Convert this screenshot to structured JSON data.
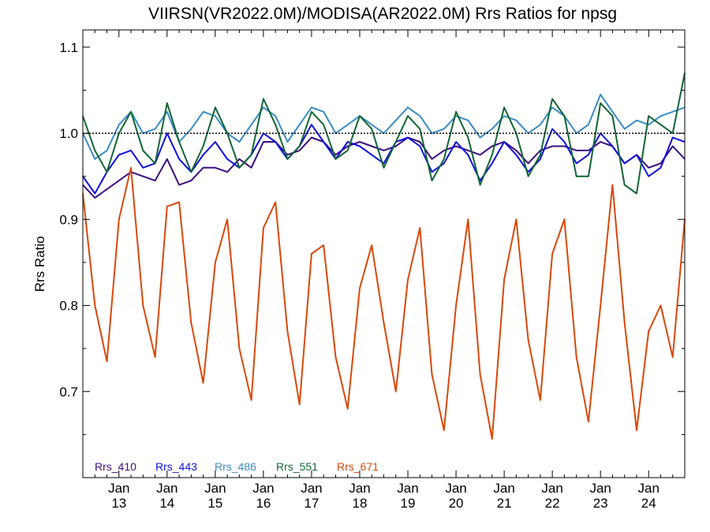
{
  "chart_data": {
    "type": "line",
    "title": "VIIRSN(VR2022.0M)/MODISA(AR2022.0M)  Rrs Ratios for npsg",
    "xlabel": "",
    "ylabel": "Rrs Ratio",
    "x_axis": {
      "unit": "year (20xx)",
      "range": [
        2012.25,
        2024.75
      ],
      "tick_years": [
        2013,
        2014,
        2015,
        2016,
        2017,
        2018,
        2019,
        2020,
        2021,
        2022,
        2023,
        2024
      ],
      "tick_month_labels": [
        "Jan",
        "Jan",
        "Jan",
        "Jan",
        "Jan",
        "Jan",
        "Jan",
        "Jan",
        "Jan",
        "Jan",
        "Jan",
        "Jan"
      ],
      "tick_year_labels": [
        "13",
        "14",
        "15",
        "16",
        "17",
        "18",
        "19",
        "20",
        "21",
        "22",
        "23",
        "24"
      ]
    },
    "y_axis": {
      "range": [
        0.6,
        1.12
      ],
      "ticks": [
        0.7,
        0.8,
        0.9,
        1.0,
        1.1
      ],
      "tick_labels": [
        "0.7",
        "0.8",
        "0.9",
        "1.0",
        "1.1"
      ],
      "minor_ticks": [
        0.65,
        0.75,
        0.85,
        0.95,
        1.05
      ]
    },
    "grid": false,
    "reference_line": {
      "y": 1.0,
      "style": "dotted"
    },
    "legend_placement": "bottom-left",
    "series": [
      {
        "name": "Rrs_410",
        "color": "#3c0d80",
        "x": [
          2012.25,
          2012.5,
          2012.75,
          2013.0,
          2013.25,
          2013.5,
          2013.75,
          2014.0,
          2014.25,
          2014.5,
          2014.75,
          2015.0,
          2015.25,
          2015.5,
          2015.75,
          2016.0,
          2016.25,
          2016.5,
          2016.75,
          2017.0,
          2017.25,
          2017.5,
          2017.75,
          2018.0,
          2018.25,
          2018.5,
          2018.75,
          2019.0,
          2019.25,
          2019.5,
          2019.75,
          2020.0,
          2020.25,
          2020.5,
          2020.75,
          2021.0,
          2021.25,
          2021.5,
          2021.75,
          2022.0,
          2022.25,
          2022.5,
          2022.75,
          2023.0,
          2023.25,
          2023.5,
          2023.75,
          2024.0,
          2024.25,
          2024.5,
          2024.75
        ],
        "values": [
          0.94,
          0.925,
          0.935,
          0.945,
          0.955,
          0.95,
          0.945,
          0.97,
          0.94,
          0.945,
          0.96,
          0.96,
          0.955,
          0.97,
          0.96,
          0.99,
          0.99,
          0.975,
          0.98,
          0.995,
          0.99,
          0.975,
          0.985,
          0.99,
          0.985,
          0.98,
          0.985,
          0.995,
          0.99,
          0.97,
          0.98,
          0.985,
          0.98,
          0.975,
          0.985,
          0.99,
          0.98,
          0.965,
          0.98,
          0.985,
          0.985,
          0.98,
          0.98,
          0.99,
          0.985,
          0.965,
          0.975,
          0.96,
          0.965,
          0.985,
          0.97
        ]
      },
      {
        "name": "Rrs_443",
        "color": "#1010e0",
        "x": [
          2012.25,
          2012.5,
          2012.75,
          2013.0,
          2013.25,
          2013.5,
          2013.75,
          2014.0,
          2014.25,
          2014.5,
          2014.75,
          2015.0,
          2015.25,
          2015.5,
          2015.75,
          2016.0,
          2016.25,
          2016.5,
          2016.75,
          2017.0,
          2017.25,
          2017.5,
          2017.75,
          2018.0,
          2018.25,
          2018.5,
          2018.75,
          2019.0,
          2019.25,
          2019.5,
          2019.75,
          2020.0,
          2020.25,
          2020.5,
          2020.75,
          2021.0,
          2021.25,
          2021.5,
          2021.75,
          2022.0,
          2022.25,
          2022.5,
          2022.75,
          2023.0,
          2023.25,
          2023.5,
          2023.75,
          2024.0,
          2024.25,
          2024.5,
          2024.75
        ],
        "values": [
          0.95,
          0.93,
          0.955,
          0.975,
          0.98,
          0.96,
          0.965,
          1.0,
          0.97,
          0.955,
          0.975,
          0.99,
          0.97,
          0.96,
          0.975,
          1.0,
          0.99,
          0.97,
          0.985,
          1.01,
          0.99,
          0.97,
          0.99,
          0.985,
          0.975,
          0.965,
          0.99,
          0.995,
          0.985,
          0.955,
          0.965,
          0.99,
          0.975,
          0.945,
          0.965,
          0.99,
          0.975,
          0.955,
          0.97,
          1.005,
          0.99,
          0.965,
          0.975,
          1.0,
          0.985,
          0.965,
          0.975,
          0.95,
          0.96,
          0.995,
          0.99
        ]
      },
      {
        "name": "Rrs_486",
        "color": "#3a8cc6",
        "x": [
          2012.25,
          2012.5,
          2012.75,
          2013.0,
          2013.25,
          2013.5,
          2013.75,
          2014.0,
          2014.25,
          2014.5,
          2014.75,
          2015.0,
          2015.25,
          2015.5,
          2015.75,
          2016.0,
          2016.25,
          2016.5,
          2016.75,
          2017.0,
          2017.25,
          2017.5,
          2017.75,
          2018.0,
          2018.25,
          2018.5,
          2018.75,
          2019.0,
          2019.25,
          2019.5,
          2019.75,
          2020.0,
          2020.25,
          2020.5,
          2020.75,
          2021.0,
          2021.25,
          2021.5,
          2021.75,
          2022.0,
          2022.25,
          2022.5,
          2022.75,
          2023.0,
          2023.25,
          2023.5,
          2023.75,
          2024.0,
          2024.25,
          2024.5,
          2024.75
        ],
        "values": [
          1.0,
          0.97,
          0.98,
          1.01,
          1.025,
          1.0,
          1.005,
          1.025,
          0.99,
          1.005,
          1.025,
          1.02,
          1.0,
          0.99,
          1.01,
          1.03,
          1.02,
          0.99,
          1.01,
          1.03,
          1.025,
          1.0,
          1.01,
          1.02,
          1.01,
          1.0,
          1.015,
          1.03,
          1.02,
          1.0,
          1.005,
          1.02,
          1.015,
          0.995,
          1.005,
          1.02,
          1.015,
          1.0,
          1.01,
          1.03,
          1.02,
          1.0,
          1.01,
          1.045,
          1.025,
          1.005,
          1.015,
          1.01,
          1.02,
          1.025,
          1.03
        ]
      },
      {
        "name": "Rrs_551",
        "color": "#116633",
        "x": [
          2012.25,
          2012.5,
          2012.75,
          2013.0,
          2013.25,
          2013.5,
          2013.75,
          2014.0,
          2014.25,
          2014.5,
          2014.75,
          2015.0,
          2015.25,
          2015.5,
          2015.75,
          2016.0,
          2016.25,
          2016.5,
          2016.75,
          2017.0,
          2017.25,
          2017.5,
          2017.75,
          2018.0,
          2018.25,
          2018.5,
          2018.75,
          2019.0,
          2019.25,
          2019.5,
          2019.75,
          2020.0,
          2020.25,
          2020.5,
          2020.75,
          2021.0,
          2021.25,
          2021.5,
          2021.75,
          2022.0,
          2022.25,
          2022.5,
          2022.75,
          2023.0,
          2023.25,
          2023.5,
          2023.75,
          2024.0,
          2024.25,
          2024.5,
          2024.75
        ],
        "values": [
          1.02,
          0.98,
          0.955,
          1.0,
          1.025,
          0.98,
          0.965,
          1.035,
          0.99,
          0.955,
          0.985,
          1.03,
          1.0,
          0.96,
          0.975,
          1.04,
          1.01,
          0.97,
          0.985,
          1.025,
          1.01,
          0.97,
          0.98,
          1.02,
          1.005,
          0.96,
          0.99,
          1.02,
          1.005,
          0.945,
          0.97,
          1.025,
          0.995,
          0.94,
          0.975,
          1.03,
          1.0,
          0.95,
          0.975,
          1.04,
          1.02,
          0.95,
          0.95,
          1.035,
          1.02,
          0.94,
          0.93,
          1.02,
          1.01,
          1.0,
          1.07
        ]
      },
      {
        "name": "Rrs_671",
        "color": "#d84808",
        "x": [
          2012.25,
          2012.5,
          2012.75,
          2013.0,
          2013.25,
          2013.5,
          2013.75,
          2014.0,
          2014.25,
          2014.5,
          2014.75,
          2015.0,
          2015.25,
          2015.5,
          2015.75,
          2016.0,
          2016.25,
          2016.5,
          2016.75,
          2017.0,
          2017.25,
          2017.5,
          2017.75,
          2018.0,
          2018.25,
          2018.5,
          2018.75,
          2019.0,
          2019.25,
          2019.5,
          2019.75,
          2020.0,
          2020.25,
          2020.5,
          2020.75,
          2021.0,
          2021.25,
          2021.5,
          2021.75,
          2022.0,
          2022.25,
          2022.5,
          2022.75,
          2023.0,
          2023.25,
          2023.5,
          2023.75,
          2024.0,
          2024.25,
          2024.5,
          2024.75
        ],
        "values": [
          0.93,
          0.8,
          0.735,
          0.9,
          0.96,
          0.8,
          0.74,
          0.915,
          0.92,
          0.78,
          0.71,
          0.85,
          0.9,
          0.75,
          0.69,
          0.89,
          0.92,
          0.77,
          0.685,
          0.86,
          0.87,
          0.74,
          0.68,
          0.82,
          0.87,
          0.78,
          0.7,
          0.83,
          0.89,
          0.72,
          0.655,
          0.8,
          0.9,
          0.72,
          0.645,
          0.83,
          0.9,
          0.76,
          0.69,
          0.86,
          0.9,
          0.74,
          0.665,
          0.8,
          0.94,
          0.78,
          0.655,
          0.77,
          0.8,
          0.74,
          0.9
        ]
      }
    ]
  }
}
